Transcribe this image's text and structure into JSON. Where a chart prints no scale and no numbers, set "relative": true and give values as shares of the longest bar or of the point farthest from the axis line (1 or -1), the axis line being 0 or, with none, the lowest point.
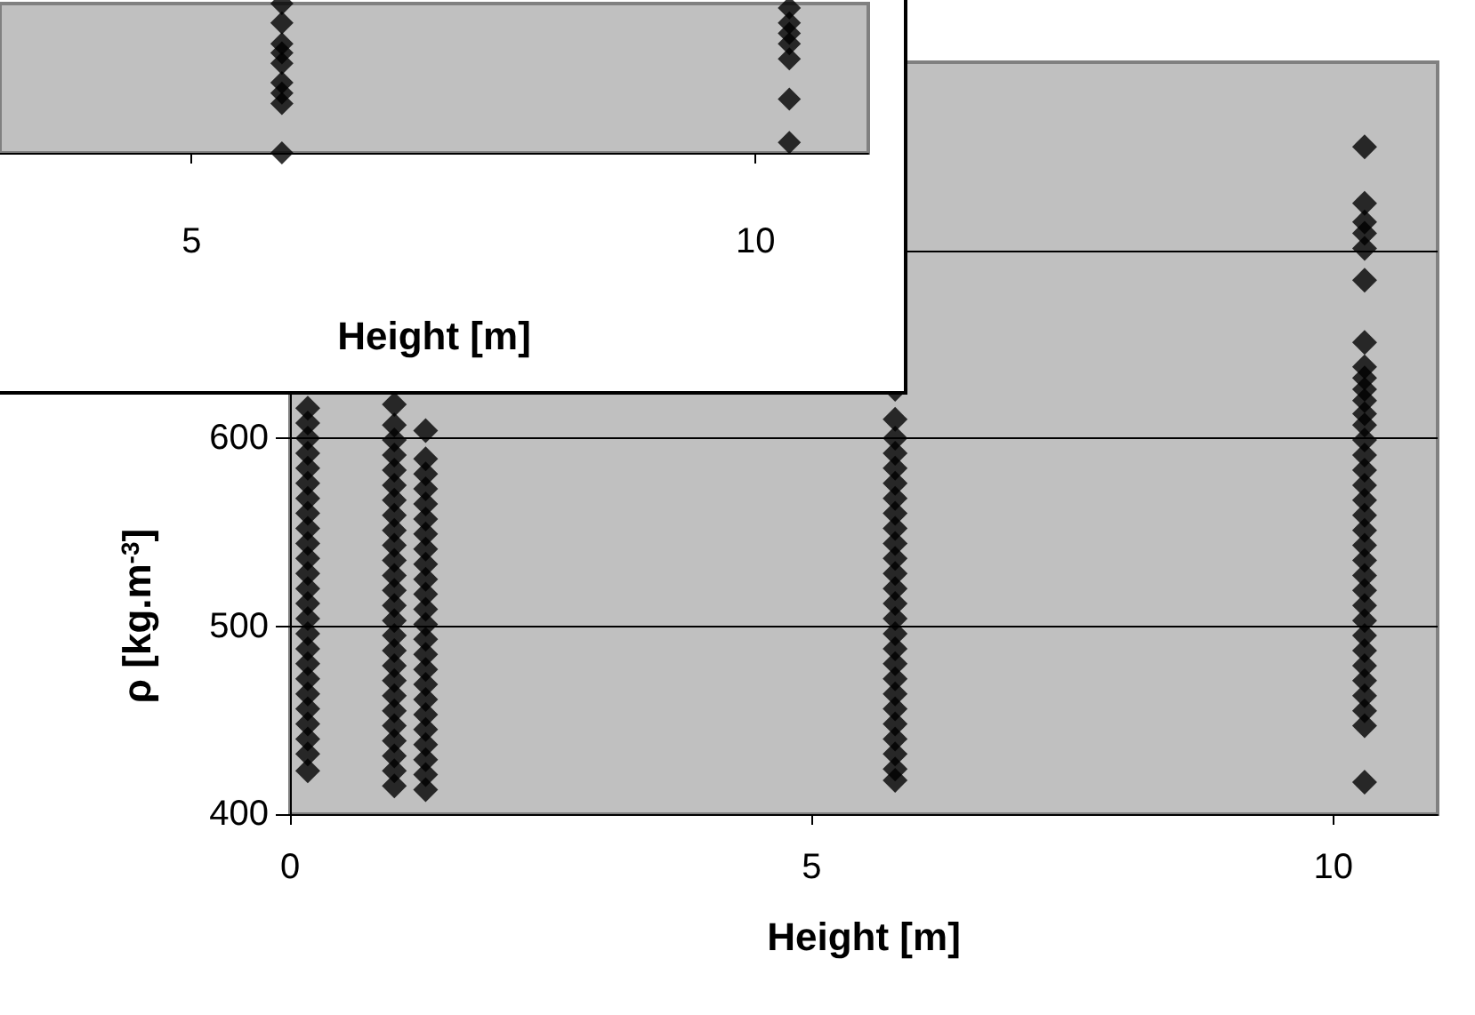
{
  "chart_data": [
    {
      "type": "scatter",
      "xlabel": "Height [m]",
      "relative": true,
      "tick_labels": "x",
      "marker": "diamond",
      "xlim": [
        3.3,
        11
      ],
      "xticks": [
        5,
        10
      ],
      "series": [
        {
          "color": "#000000",
          "x": [
            5.8,
            5.8,
            5.8,
            5.8,
            5.8,
            5.8,
            5.8,
            5.8,
            5.8,
            10.3,
            10.3,
            10.3,
            10.3,
            10.3,
            10.3,
            10.3
          ],
          "values": [
            0,
            0.33,
            0.4,
            0.47,
            0.6,
            0.67,
            0.73,
            0.87,
            1,
            0.07,
            0.36,
            0.63,
            0.73,
            0.8,
            0.87,
            0.97
          ]
        }
      ]
    },
    {
      "type": "scatter",
      "xlabel": "Height [m]",
      "ylabel": "ρ [kg.m$^{-3}$]",
      "grid": "y",
      "marker": "diamond",
      "xlim": [
        0,
        11
      ],
      "xticks": [
        0,
        5,
        10
      ],
      "ylim": [
        400,
        800
      ],
      "yticks": [
        400,
        500,
        600,
        {
          "value": 700,
          "label": null
        },
        {
          "value": 800,
          "label": null
        }
      ],
      "series": [
        {
          "color": "#000000",
          "x": [
            0.17,
            0.17,
            0.17,
            0.17,
            0.17,
            0.17,
            0.17,
            0.17,
            0.17,
            0.17,
            0.17,
            0.17,
            0.17,
            0.17,
            0.17,
            0.17,
            0.17,
            0.17,
            0.17,
            0.17,
            0.17,
            0.17,
            0.17,
            0.17,
            0.17,
            1.0,
            1.0,
            1.0,
            1.0,
            1.0,
            1.0,
            1.0,
            1.0,
            1.0,
            1.0,
            1.0,
            1.0,
            1.0,
            1.0,
            1.0,
            1.0,
            1.0,
            1.0,
            1.0,
            1.0,
            1.0,
            1.0,
            1.0,
            1.0,
            1.0,
            1.0,
            1.3,
            1.3,
            1.3,
            1.3,
            1.3,
            1.3,
            1.3,
            1.3,
            1.3,
            1.3,
            1.3,
            1.3,
            1.3,
            1.3,
            1.3,
            1.3,
            1.3,
            1.3,
            1.3,
            1.3,
            1.3,
            1.3,
            1.3,
            1.3,
            5.8,
            5.8,
            5.8,
            5.8,
            5.8,
            5.8,
            5.8,
            5.8,
            5.8,
            5.8,
            5.8,
            5.8,
            5.8,
            5.8,
            5.8,
            5.8,
            5.8,
            5.8,
            5.8,
            5.8,
            5.8,
            5.8,
            5.8,
            5.8,
            5.8,
            5.8,
            10.3,
            10.3,
            10.3,
            10.3,
            10.3,
            10.3,
            10.3,
            10.3,
            10.3,
            10.3,
            10.3,
            10.3,
            10.3,
            10.3,
            10.3,
            10.3,
            10.3,
            10.3,
            10.3,
            10.3,
            10.3,
            10.3,
            10.3,
            10.3,
            10.3,
            10.3,
            10.3,
            10.3,
            10.3,
            10.3,
            10.3,
            10.3,
            10.3,
            10.3
          ],
          "values": [
            423,
            432,
            440,
            448,
            456,
            464,
            472,
            480,
            488,
            496,
            504,
            512,
            520,
            528,
            536,
            544,
            552,
            560,
            568,
            576,
            584,
            592,
            600,
            608,
            616,
            415,
            423,
            431,
            439,
            447,
            455,
            463,
            471,
            479,
            487,
            495,
            503,
            511,
            519,
            527,
            535,
            543,
            551,
            559,
            567,
            575,
            583,
            591,
            599,
            607,
            618,
            413,
            421,
            429,
            437,
            445,
            453,
            461,
            469,
            477,
            485,
            493,
            501,
            509,
            517,
            525,
            533,
            541,
            549,
            557,
            565,
            573,
            581,
            589,
            604,
            418,
            424,
            432,
            440,
            448,
            456,
            464,
            472,
            480,
            488,
            496,
            504,
            512,
            520,
            528,
            536,
            544,
            552,
            560,
            568,
            576,
            584,
            592,
            600,
            610,
            626,
            417,
            447,
            455,
            463,
            471,
            479,
            487,
            495,
            503,
            511,
            519,
            527,
            535,
            543,
            551,
            559,
            567,
            575,
            583,
            591,
            599,
            607,
            613,
            620,
            626,
            632,
            638,
            651,
            684,
            701,
            709,
            715,
            725,
            755
          ]
        }
      ]
    }
  ]
}
